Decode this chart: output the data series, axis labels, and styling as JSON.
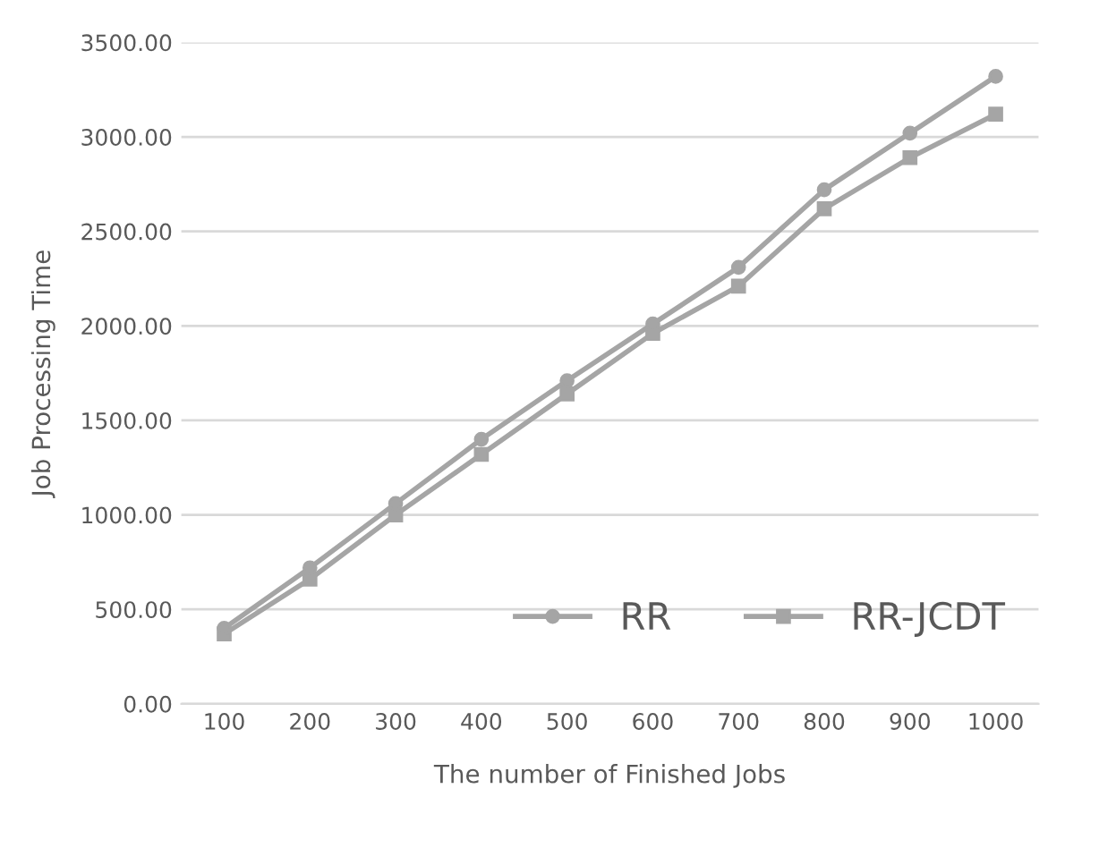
{
  "chart_data": {
    "type": "line",
    "xlabel": "The number of Finished Jobs",
    "ylabel": "Job Processing Time",
    "categories": [
      "100",
      "200",
      "300",
      "400",
      "500",
      "600",
      "700",
      "800",
      "900",
      "1000"
    ],
    "series": [
      {
        "name": "RR",
        "color": "#a5a5a5",
        "marker": "circle",
        "values": [
          400,
          720,
          1060,
          1400,
          1710,
          2010,
          2310,
          2720,
          3020,
          3320
        ]
      },
      {
        "name": "RR-JCDT",
        "color": "#a5a5a5",
        "marker": "square",
        "values": [
          370,
          660,
          1000,
          1320,
          1640,
          1960,
          2210,
          2620,
          2890,
          3120
        ]
      }
    ],
    "ylim": [
      0,
      3500
    ],
    "yticks": [
      {
        "value": 0,
        "label": "0.00"
      },
      {
        "value": 500,
        "label": "500.00"
      },
      {
        "value": 1000,
        "label": "1000.00"
      },
      {
        "value": 1500,
        "label": "1500.00"
      },
      {
        "value": 2000,
        "label": "2000.00"
      },
      {
        "value": 2500,
        "label": "2500.00"
      },
      {
        "value": 3000,
        "label": "3000.00"
      },
      {
        "value": 3500,
        "label": "3500.00"
      }
    ],
    "grid": "y",
    "legend": "bottom right"
  }
}
